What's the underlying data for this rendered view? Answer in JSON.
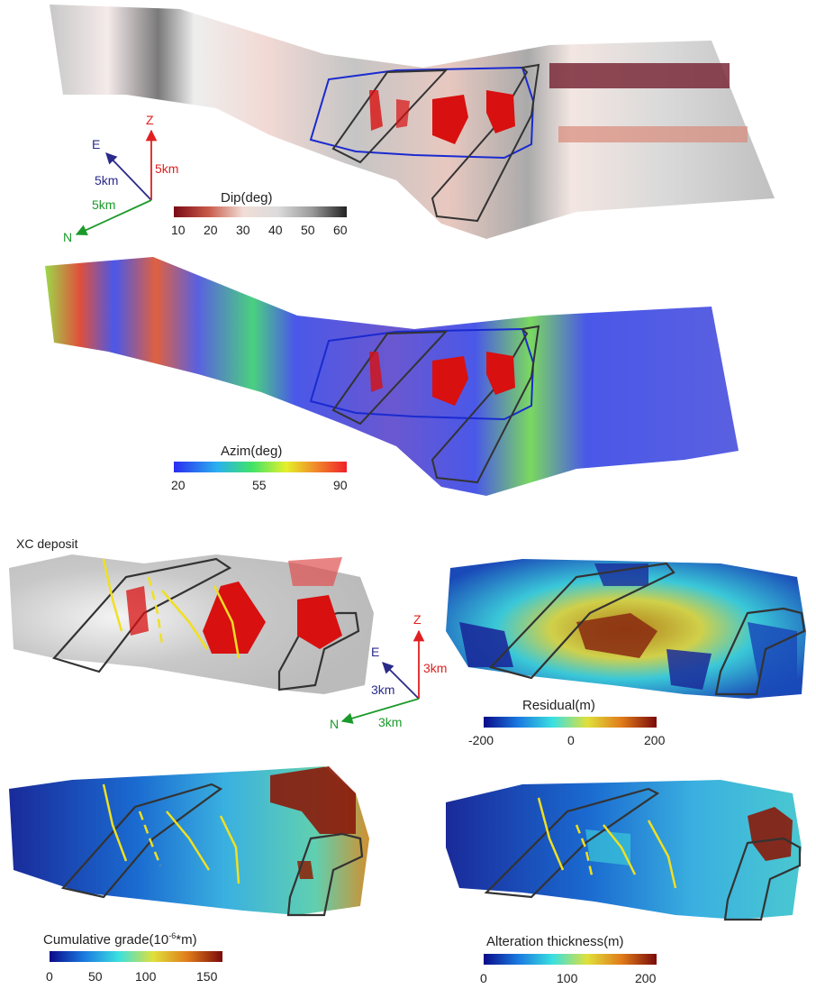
{
  "panels": {
    "dip": {
      "colorbar": {
        "title": "Dip(deg)",
        "ticks": [
          "10",
          "20",
          "30",
          "40",
          "50",
          "60"
        ],
        "colors": [
          "#7a0a14",
          "#c85a4a",
          "#f1ddd6",
          "#dcdcdc",
          "#9a9a9a",
          "#222222"
        ]
      },
      "axes": {
        "e_label": "E",
        "z_label": "Z",
        "n_label": "N",
        "e_dist": "5km",
        "z_dist": "5km",
        "n_dist": "5km"
      }
    },
    "azim": {
      "colorbar": {
        "title": "Azim(deg)",
        "ticks": [
          "20",
          "55",
          "90"
        ],
        "colors": [
          "#2a2cf0",
          "#2ab0f0",
          "#3fe36a",
          "#e5f02a",
          "#f08a2a",
          "#f0202a"
        ]
      }
    },
    "deposit": {
      "label": "XC deposit",
      "axes": {
        "e_label": "E",
        "z_label": "Z",
        "n_label": "N",
        "e_dist": "3km",
        "z_dist": "3km",
        "n_dist": "3km"
      }
    },
    "residual": {
      "colorbar": {
        "title": "Residual(m)",
        "ticks": [
          "-200",
          "0",
          "200"
        ],
        "colors": [
          "#0a0a8a",
          "#1a7ae0",
          "#3ae0e0",
          "#e0e03a",
          "#e07a1a",
          "#7a0a0a"
        ]
      }
    },
    "cumulative": {
      "colorbar": {
        "title_main": "Cumulative grade(10",
        "title_sup": "-6",
        "title_end": "*m)",
        "ticks": [
          "0",
          "50",
          "100",
          "150"
        ],
        "colors": [
          "#0a0a8a",
          "#1a7ae0",
          "#3ae0e0",
          "#e0e03a",
          "#e07a1a",
          "#7a0a0a"
        ]
      }
    },
    "alteration": {
      "colorbar": {
        "title": "Alteration thickness(m)",
        "ticks": [
          "0",
          "100",
          "200"
        ],
        "colors": [
          "#0a0a8a",
          "#1a7ae0",
          "#3ae0e0",
          "#e0e03a",
          "#e07a1a",
          "#7a0a0a"
        ]
      }
    }
  },
  "colors": {
    "e_axis": "#2a2a8a",
    "z_axis": "#e02020",
    "n_axis": "#1a9a2a",
    "outline": "#333333",
    "boundary": "#1a2ad0",
    "fault": "#f0e020",
    "orebody": "#d81010"
  }
}
